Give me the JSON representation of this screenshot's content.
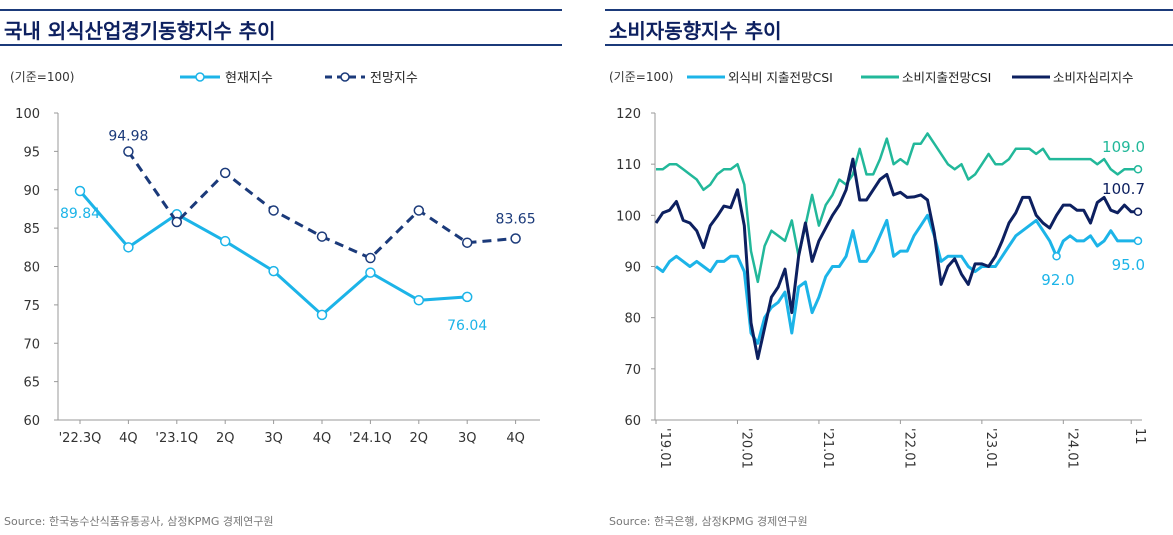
{
  "left": {
    "title": "국내 외식산업경기동향지수 추이",
    "unit": "(기준=100)",
    "source": "Source: 한국농수산식품유통공사, 삼정KPMG 경제연구원"
  },
  "right": {
    "title": "소비자동향지수 추이",
    "unit": "(기준=100)",
    "source": "Source: 한국은행, 삼정KPMG 경제연구원"
  },
  "colors": {
    "header_line": "#1b3a7a",
    "title": "#0d2060",
    "current_index": "#1cb4e8",
    "outlook_index": "#1b3a7a",
    "dining_csi": "#1cb4e8",
    "spending_csi": "#22b89a",
    "consumer_sentiment": "#0d2060"
  },
  "chart_data": [
    {
      "type": "line",
      "categories": [
        "'22.3Q",
        "4Q",
        "'23.1Q",
        "2Q",
        "3Q",
        "4Q",
        "'24.1Q",
        "2Q",
        "3Q",
        "4Q"
      ],
      "ylim": [
        60,
        100
      ],
      "yticks": [
        60,
        65,
        70,
        75,
        80,
        85,
        90,
        95,
        100
      ],
      "series": [
        {
          "name": "현재지수",
          "values": [
            89.84,
            82.5,
            86.8,
            83.3,
            79.4,
            73.7,
            79.2,
            75.6,
            76.04,
            null
          ]
        },
        {
          "name": "전망지수",
          "values": [
            null,
            94.98,
            85.8,
            92.2,
            87.3,
            83.9,
            81.1,
            87.3,
            83.1,
            83.65
          ]
        }
      ],
      "annotations": [
        {
          "series": "현재지수",
          "index": 0,
          "text": "89.84"
        },
        {
          "series": "현재지수",
          "index": 8,
          "text": "76.04"
        },
        {
          "series": "전망지수",
          "index": 1,
          "text": "94.98"
        },
        {
          "series": "전망지수",
          "index": 9,
          "text": "83.65"
        }
      ]
    },
    {
      "type": "line",
      "xtick_labels": [
        "'19.01",
        "'20.01",
        "'21.01",
        "'22.01",
        "'23.01",
        "'24.01",
        "11"
      ],
      "xtick_index": [
        0,
        12,
        24,
        36,
        48,
        60,
        70
      ],
      "ylim": [
        60,
        120
      ],
      "yticks": [
        60,
        70,
        80,
        90,
        100,
        110,
        120
      ],
      "series": [
        {
          "name": "외식비 지출전망CSI",
          "values": [
            90,
            89,
            91,
            92,
            91,
            90,
            91,
            90,
            89,
            91,
            91,
            92,
            92,
            89,
            77,
            75,
            80,
            82,
            83,
            85,
            77,
            86,
            87,
            81,
            84,
            88,
            90,
            90,
            92,
            97,
            91,
            91,
            93,
            96,
            99,
            92,
            93,
            93,
            96,
            98,
            100,
            96,
            91,
            92,
            92,
            92,
            90,
            89,
            90,
            90,
            90,
            92,
            94,
            96,
            97,
            98,
            99,
            97,
            95,
            92,
            95,
            96,
            95,
            95,
            96,
            94,
            95,
            97,
            95,
            95,
            95,
            95
          ]
        },
        {
          "name": "소비지출전망CSI",
          "values": [
            109,
            109,
            110,
            110,
            109,
            108,
            107,
            105,
            106,
            108,
            109,
            109,
            110,
            106,
            93,
            87,
            94,
            97,
            96,
            95,
            99,
            92,
            98,
            104,
            98,
            102,
            104,
            107,
            106,
            108,
            113,
            108,
            108,
            111,
            115,
            110,
            111,
            110,
            114,
            114,
            116,
            114,
            112,
            110,
            109,
            110,
            107,
            108,
            110,
            112,
            110,
            110,
            111,
            113,
            113,
            113,
            112,
            113,
            111,
            111,
            111,
            111,
            111,
            111,
            111,
            110,
            111,
            109,
            108,
            109,
            109,
            109
          ]
        },
        {
          "name": "소비자심리지수",
          "values": [
            98.5,
            100.5,
            101,
            102.7,
            99,
            98.5,
            97,
            93.7,
            98,
            99.8,
            101.8,
            101.5,
            105,
            98,
            79,
            72,
            78,
            84,
            86,
            89.5,
            81,
            92,
            98.5,
            91,
            95,
            97.5,
            100,
            102,
            105,
            111,
            103,
            103,
            105,
            107,
            108,
            104,
            104.5,
            103.5,
            103.6,
            104,
            103,
            96.5,
            86.5,
            90,
            91.5,
            88.5,
            86.5,
            90.5,
            90.5,
            90,
            92,
            95,
            98.5,
            100.5,
            103.5,
            103.5,
            100,
            98.5,
            97.5,
            100,
            102,
            102,
            101,
            101,
            98.5,
            102.5,
            103.5,
            101,
            100.5,
            102,
            100.7,
            100.7
          ]
        }
      ],
      "annotations": [
        {
          "series": "소비지출전망CSI",
          "text": "109.0"
        },
        {
          "series": "소비자심리지수",
          "text": "100.7"
        },
        {
          "series": "외식비 지출전망CSI",
          "text": "95.0"
        },
        {
          "series": "외식비 지출전망CSI",
          "index": 59,
          "text": "92.0"
        }
      ]
    }
  ]
}
